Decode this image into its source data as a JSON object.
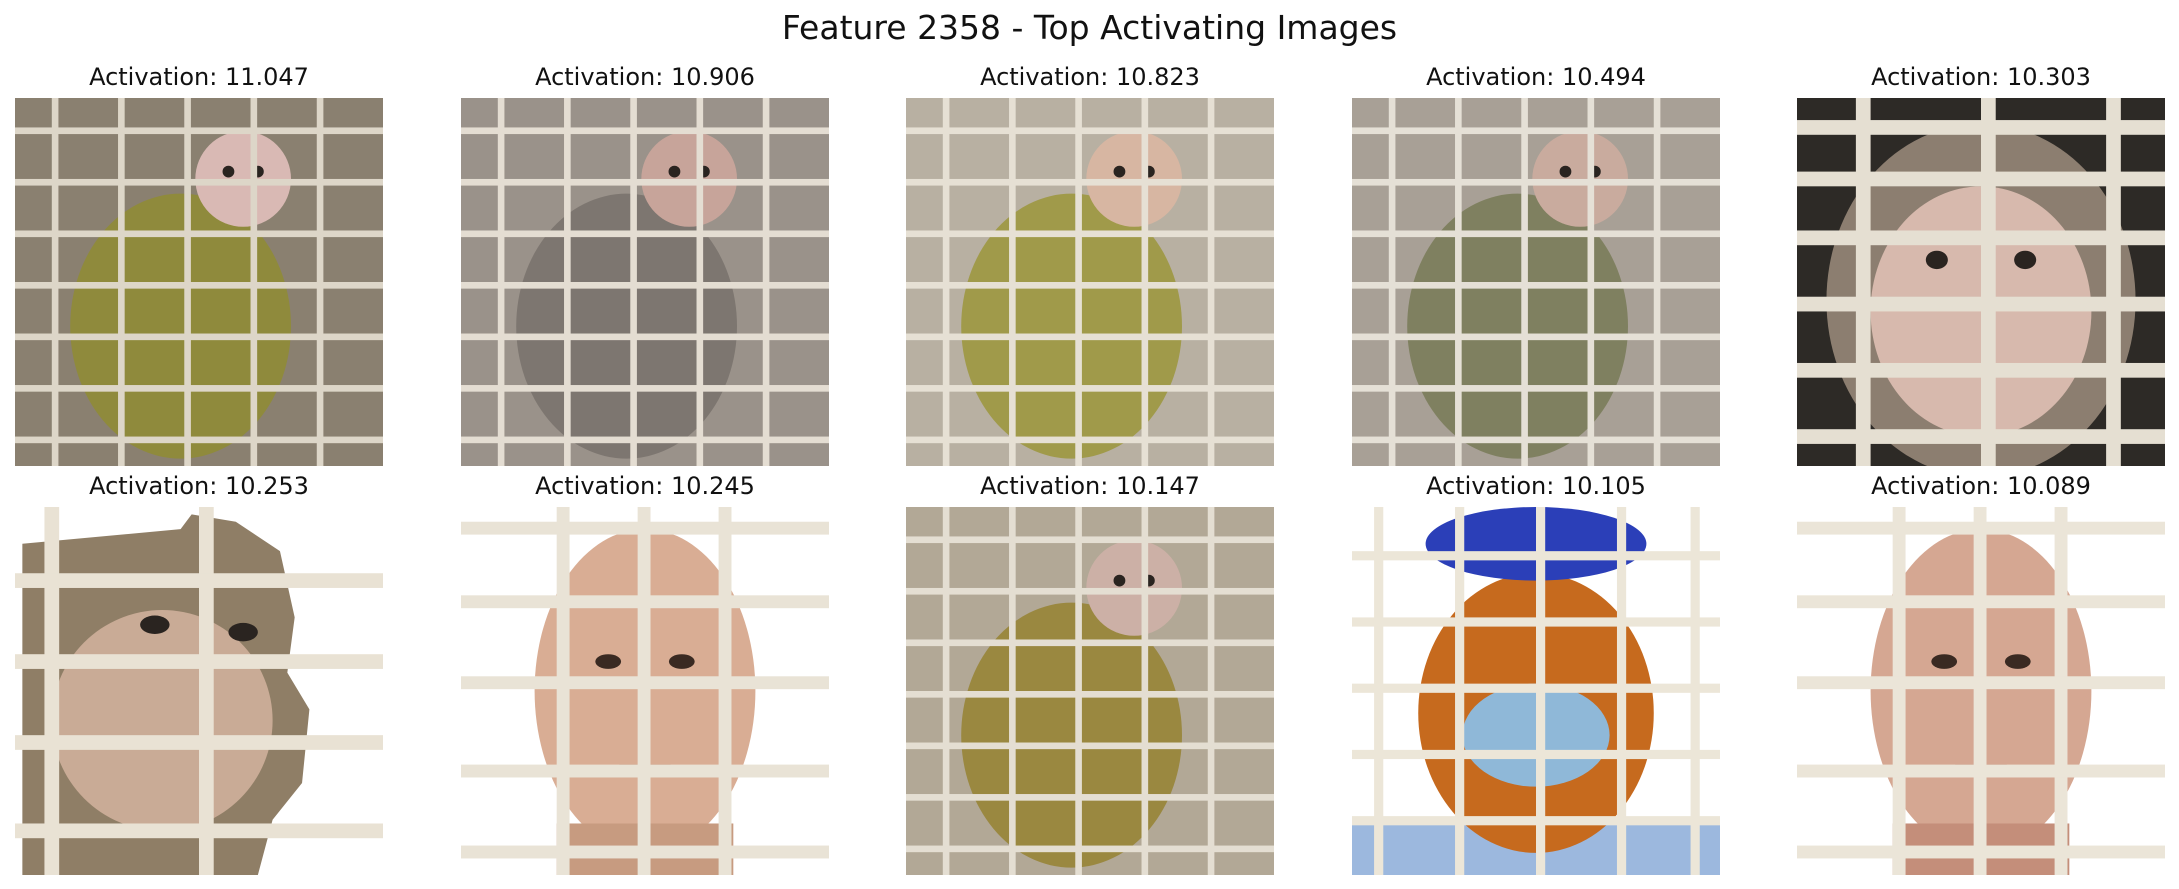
{
  "figure": {
    "title": "Feature 2358 - Top Activating Images"
  },
  "panels": [
    {
      "title": "Activation: 11.047",
      "subject": "monkey-in-cage",
      "palette": {
        "bg": "#8a8070",
        "body": "#8f8a3c",
        "face": "#d9b9b4",
        "bars": "#ddd6c8"
      }
    },
    {
      "title": "Activation: 10.906",
      "subject": "monkey-in-cage",
      "palette": {
        "bg": "#9a928a",
        "body": "#7d7670",
        "face": "#c7a49a",
        "bars": "#e4ddd2"
      }
    },
    {
      "title": "Activation: 10.823",
      "subject": "monkey-in-cage",
      "palette": {
        "bg": "#b8b0a2",
        "body": "#a09a4a",
        "face": "#d7b6a2",
        "bars": "#e6e0d4"
      }
    },
    {
      "title": "Activation: 10.494",
      "subject": "monkey-in-cage",
      "palette": {
        "bg": "#a8a096",
        "body": "#7f8060",
        "face": "#c9ab9e",
        "bars": "#e5e0d6"
      }
    },
    {
      "title": "Activation: 10.303",
      "subject": "monkey-face-cage",
      "palette": {
        "bg": "#2d2a26",
        "body": "#8c7e70",
        "face": "#d7b9ad",
        "bars": "#e5dfd2"
      }
    },
    {
      "title": "Activation: 10.253",
      "subject": "monkey-face-cutout",
      "palette": {
        "bg": "#ffffff",
        "body": "#8f7e66",
        "face": "#c9ab96",
        "bars": "#e9e2d4"
      }
    },
    {
      "title": "Activation: 10.245",
      "subject": "man-face-cage",
      "palette": {
        "bg": "#ffffff",
        "body": "#c79b80",
        "face": "#d9ad94",
        "bars": "#e9e3d6"
      }
    },
    {
      "title": "Activation: 10.147",
      "subject": "monkey-in-cage",
      "palette": {
        "bg": "#b2a896",
        "body": "#9a8840",
        "face": "#ccb0a6",
        "bars": "#e4ded2"
      }
    },
    {
      "title": "Activation: 10.105",
      "subject": "person-ppe-cage",
      "palette": {
        "bg": "#ffffff",
        "body": "#c66a1e",
        "face": "#8fb8d8",
        "bars": "#ece6d8"
      }
    },
    {
      "title": "Activation: 10.089",
      "subject": "man-face-cage",
      "palette": {
        "bg": "#ffffff",
        "body": "#c48e7a",
        "face": "#d5a792",
        "bars": "#ebe5d8"
      }
    }
  ]
}
